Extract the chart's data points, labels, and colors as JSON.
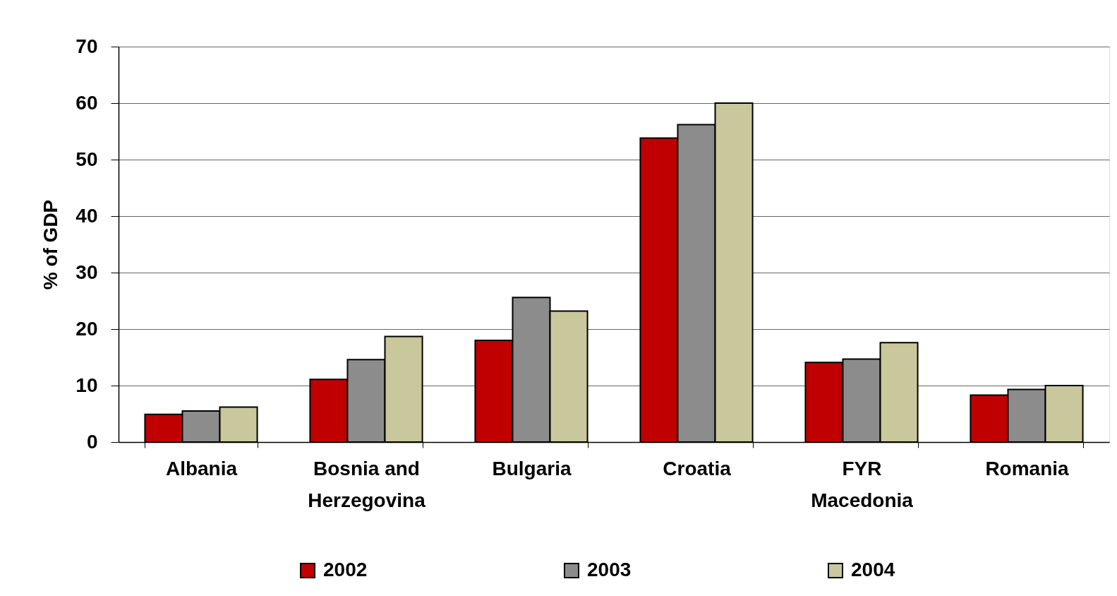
{
  "chart_data": {
    "type": "bar",
    "ylabel": "% of GDP",
    "categories": [
      "Albania",
      "Bosnia and Herzegovina",
      "Bulgaria",
      "Croatia",
      "FYR Macedonia",
      "Romania"
    ],
    "series": [
      {
        "name": "2002",
        "color": "#c00000",
        "values": [
          4.9,
          11.1,
          18.0,
          53.8,
          14.1,
          8.3
        ]
      },
      {
        "name": "2003",
        "color": "#8c8c8c",
        "values": [
          5.5,
          14.6,
          25.6,
          56.2,
          14.7,
          9.3
        ]
      },
      {
        "name": "2004",
        "color": "#c8c89c",
        "values": [
          6.2,
          18.7,
          23.2,
          60.0,
          17.6,
          10.0
        ]
      }
    ],
    "ylim": [
      0,
      70
    ],
    "yticks": [
      0,
      10,
      20,
      30,
      40,
      50,
      60,
      70
    ],
    "grid": "y",
    "legend": "bottom"
  }
}
